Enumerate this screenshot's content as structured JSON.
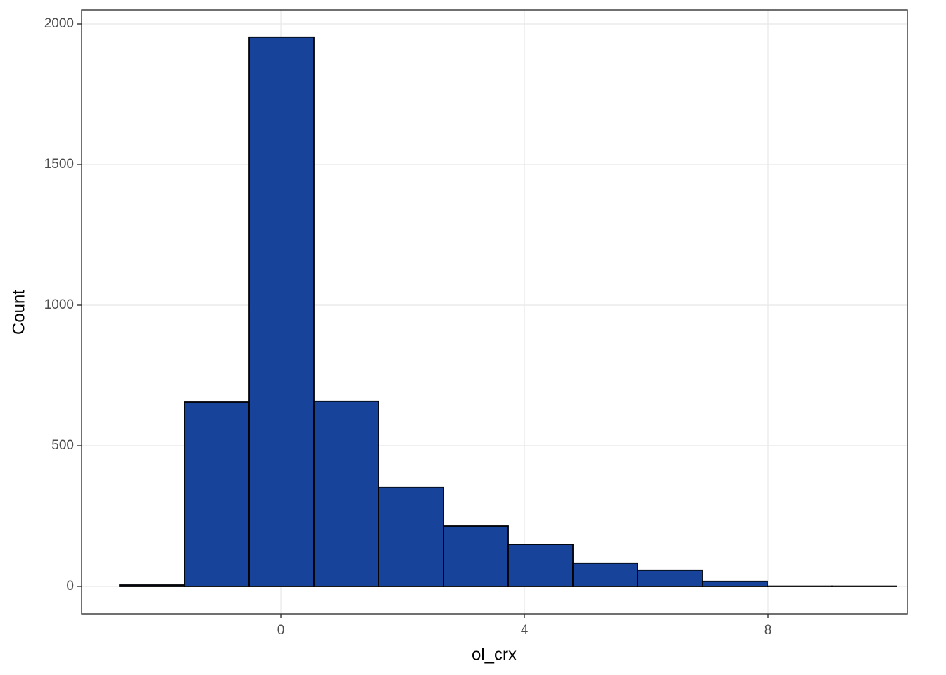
{
  "chart_data": {
    "type": "histogram",
    "x_label": "ol_crx",
    "y_label": "Count",
    "bins": [
      -2.647,
      -1.584,
      -0.52,
      0.543,
      1.607,
      2.671,
      3.734,
      4.798,
      5.861,
      6.925,
      7.988,
      9.052,
      10.116
    ],
    "values": [
      5,
      655,
      1953,
      658,
      353,
      215,
      150,
      83,
      58,
      18,
      1,
      1
    ],
    "color": "#18439a",
    "xlim": [
      -3.272,
      10.289
    ],
    "ylim": [
      -97.5,
      2050
    ],
    "xticks": [
      0,
      4,
      8
    ],
    "yticks": [
      0,
      500,
      1000,
      1500,
      2000
    ],
    "grid": true
  }
}
